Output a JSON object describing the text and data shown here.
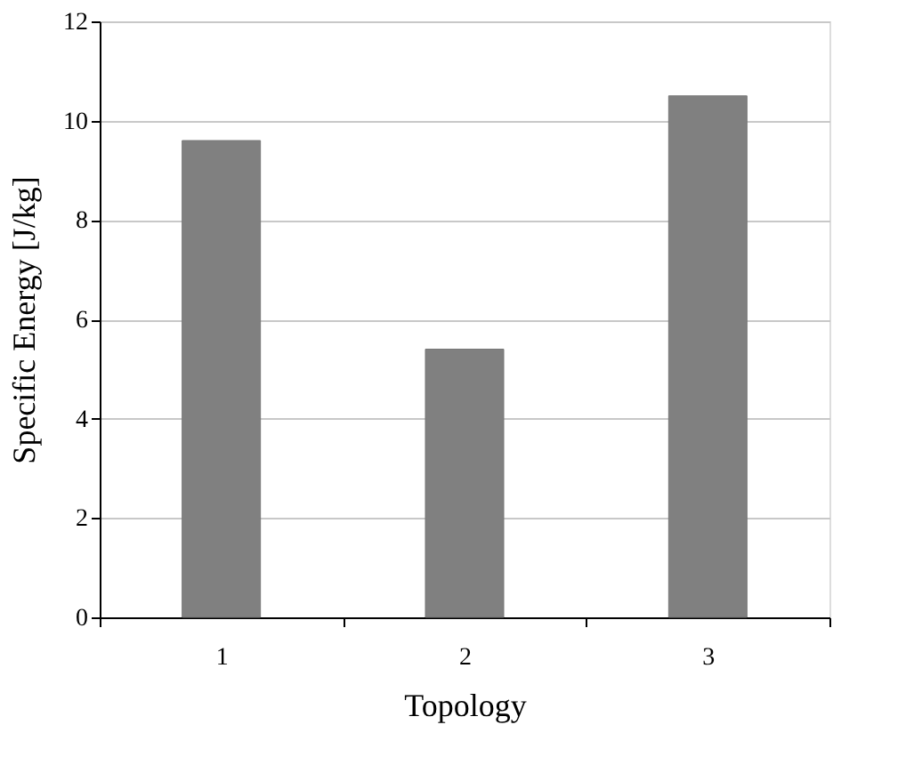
{
  "chart_data": {
    "type": "bar",
    "xlabel": "Topology",
    "ylabel": "Specific Energy [J/kg]",
    "categories": [
      "1",
      "2",
      "3"
    ],
    "series": [
      {
        "color": "#808080",
        "values": [
          9.6,
          5.4,
          10.5
        ]
      }
    ],
    "ylim": [
      0,
      12
    ],
    "yticks": [
      0,
      2,
      4,
      6,
      8,
      10,
      12
    ],
    "grid": "y",
    "legend": false
  }
}
